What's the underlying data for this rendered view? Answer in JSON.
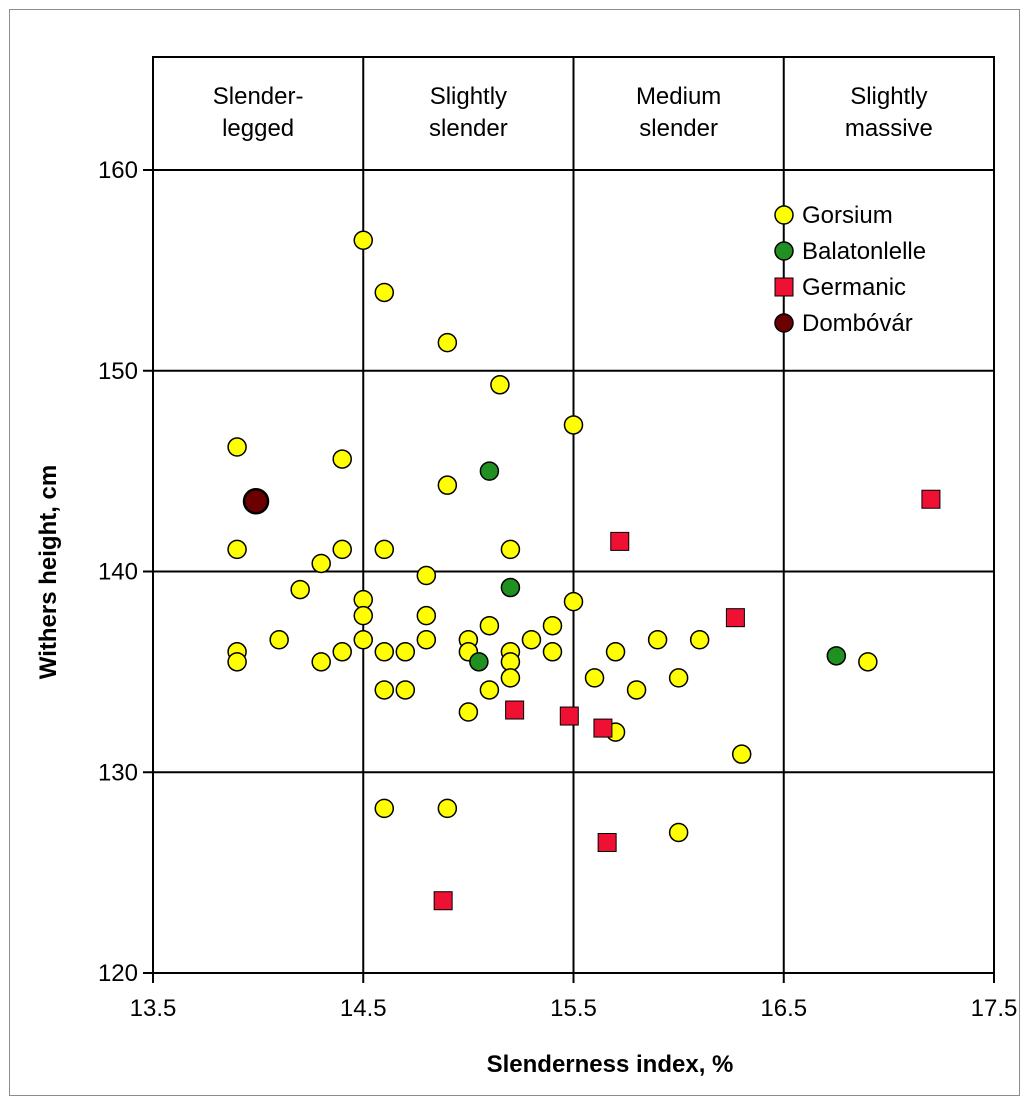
{
  "chart_data": {
    "type": "scatter",
    "xlabel": "Slenderness index, %",
    "ylabel": "Withers height, cm",
    "xlim": [
      13.5,
      17.5
    ],
    "ylim": [
      120,
      160
    ],
    "x_tick_labels": [
      "13.5",
      "14.5",
      "15.5",
      "16.5",
      "17.5"
    ],
    "y_tick_labels": [
      "120",
      "130",
      "140",
      "150",
      "160"
    ],
    "categories": [
      {
        "line1": "Slender-",
        "line2": "legged"
      },
      {
        "line1": "Slightly",
        "line2": "slender"
      },
      {
        "line1": "Medium",
        "line2": "slender"
      },
      {
        "line1": "Slightly",
        "line2": "massive"
      }
    ],
    "category_bounds": [
      13.5,
      14.5,
      15.5,
      16.5,
      17.5
    ],
    "grid": true,
    "legend_position": "top-right",
    "series": [
      {
        "name": "Gorsium",
        "marker": "circle",
        "color": "#ffff00",
        "points": [
          [
            14.5,
            156.5
          ],
          [
            14.6,
            153.9
          ],
          [
            14.9,
            151.4
          ],
          [
            15.15,
            149.3
          ],
          [
            15.5,
            147.3
          ],
          [
            13.9,
            146.2
          ],
          [
            14.4,
            145.6
          ],
          [
            14.9,
            144.3
          ],
          [
            13.9,
            141.1
          ],
          [
            14.4,
            141.1
          ],
          [
            14.6,
            141.1
          ],
          [
            15.2,
            141.1
          ],
          [
            14.3,
            140.4
          ],
          [
            14.8,
            139.8
          ],
          [
            14.2,
            139.1
          ],
          [
            14.5,
            138.6
          ],
          [
            14.5,
            137.8
          ],
          [
            14.8,
            137.8
          ],
          [
            15.5,
            138.5
          ],
          [
            15.1,
            137.3
          ],
          [
            15.4,
            137.3
          ],
          [
            14.1,
            136.6
          ],
          [
            14.5,
            136.6
          ],
          [
            14.8,
            136.6
          ],
          [
            15.0,
            136.6
          ],
          [
            15.3,
            136.6
          ],
          [
            15.9,
            136.6
          ],
          [
            16.1,
            136.6
          ],
          [
            13.9,
            136.0
          ],
          [
            14.4,
            136.0
          ],
          [
            14.6,
            136.0
          ],
          [
            14.7,
            136.0
          ],
          [
            15.0,
            136.0
          ],
          [
            15.2,
            136.0
          ],
          [
            15.4,
            136.0
          ],
          [
            15.7,
            136.0
          ],
          [
            13.9,
            135.5
          ],
          [
            14.3,
            135.5
          ],
          [
            15.2,
            135.5
          ],
          [
            16.9,
            135.5
          ],
          [
            15.2,
            134.7
          ],
          [
            15.6,
            134.7
          ],
          [
            16.0,
            134.7
          ],
          [
            14.6,
            134.1
          ],
          [
            14.7,
            134.1
          ],
          [
            15.1,
            134.1
          ],
          [
            15.8,
            134.1
          ],
          [
            15.0,
            133.0
          ],
          [
            15.7,
            132.0
          ],
          [
            16.3,
            130.9
          ],
          [
            14.6,
            128.2
          ],
          [
            14.9,
            128.2
          ],
          [
            16.0,
            127.0
          ]
        ]
      },
      {
        "name": "Balatonlelle",
        "marker": "circle",
        "color": "#209020",
        "points": [
          [
            15.1,
            145.0
          ],
          [
            15.2,
            139.2
          ],
          [
            15.05,
            135.5
          ],
          [
            16.75,
            135.8
          ]
        ]
      },
      {
        "name": "Germanic",
        "marker": "square",
        "color": "#ee1133",
        "points": [
          [
            17.2,
            143.6
          ],
          [
            15.72,
            141.5
          ],
          [
            16.27,
            137.7
          ],
          [
            15.22,
            133.1
          ],
          [
            15.48,
            132.8
          ],
          [
            15.64,
            132.2
          ],
          [
            15.66,
            126.5
          ],
          [
            14.88,
            123.6
          ]
        ]
      },
      {
        "name": "Dombóvár",
        "marker": "circle-large",
        "color": "#6b0000",
        "points": [
          [
            13.99,
            143.5
          ]
        ]
      }
    ]
  }
}
